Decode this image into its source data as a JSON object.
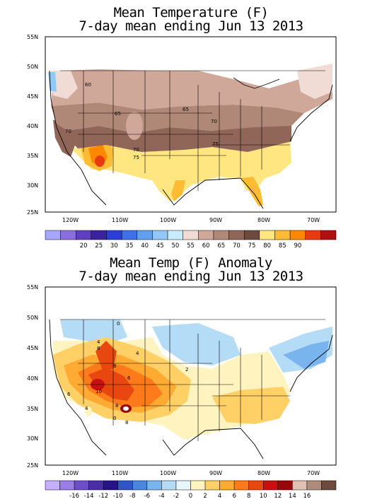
{
  "panels": [
    {
      "title_line1": "Mean Temperature (F)",
      "title_line2": "7-day mean ending Jun 13 2013",
      "lat_labels": [
        "55N",
        "50N",
        "45N",
        "40N",
        "35N",
        "30N",
        "25N"
      ],
      "lon_labels": [
        "120W",
        "110W",
        "100W",
        "90W",
        "80W",
        "70W"
      ],
      "contour_labels": [
        "60",
        "65",
        "65",
        "70",
        "70",
        "70",
        "75",
        "75"
      ],
      "colorbar": {
        "colors": [
          "#a6a6ff",
          "#8a6ee0",
          "#5f3fbf",
          "#3a22a0",
          "#2b3fd6",
          "#3f70e8",
          "#5fa0f0",
          "#90c8f8",
          "#c8ecfa",
          "#f0dcd4",
          "#d0a89a",
          "#b08878",
          "#906658",
          "#6e4a3e",
          "#ffe680",
          "#ffbb33",
          "#ff8800",
          "#e83a10",
          "#b01010"
        ],
        "tick_labels": [
          "20",
          "25",
          "30",
          "35",
          "40",
          "45",
          "50",
          "55",
          "60",
          "65",
          "70",
          "75",
          "80",
          "85",
          "90"
        ]
      }
    },
    {
      "title_line1": "Mean Temp (F) Anomaly",
      "title_line2": "7-day mean ending Jun 13 2013",
      "lat_labels": [
        "55N",
        "50N",
        "45N",
        "40N",
        "35N",
        "30N",
        "25N"
      ],
      "lon_labels": [
        "120W",
        "110W",
        "100W",
        "90W",
        "80W",
        "70W"
      ],
      "contour_labels": [
        "0",
        "4",
        "8",
        "8",
        "6",
        "4",
        "10",
        "8",
        "6",
        "2",
        "0",
        "4",
        "8"
      ],
      "colorbar": {
        "colors": [
          "#c4b0ff",
          "#9a7ee6",
          "#6e4ec8",
          "#4a2ea6",
          "#26128a",
          "#2f56c8",
          "#4a86e0",
          "#7ab4ee",
          "#b4dcf6",
          "#e6f6fa",
          "#fff4c0",
          "#ffd066",
          "#ffaa33",
          "#ff7a1a",
          "#e84810",
          "#c81010",
          "#980808",
          "#e0c0b4",
          "#b08a7c",
          "#6e4a3e"
        ],
        "tick_labels": [
          "-16",
          "-14",
          "-12",
          "-10",
          "-8",
          "-6",
          "-4",
          "-2",
          "0",
          "2",
          "4",
          "6",
          "8",
          "10",
          "12",
          "14",
          "16"
        ]
      }
    }
  ]
}
